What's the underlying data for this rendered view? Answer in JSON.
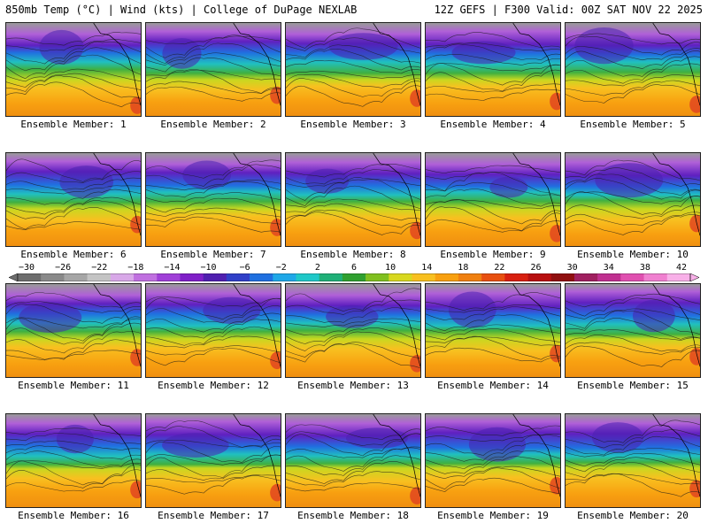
{
  "header": {
    "left": "850mb Temp (°C) | Wind (kts) | College of DuPage NEXLAB",
    "right": "12Z GEFS | F300 Valid: 00Z SAT NOV 22 2025"
  },
  "colorbar": {
    "labels": [
      "−30",
      "−26",
      "−22",
      "−18",
      "−14",
      "−10",
      "−6",
      "−2",
      "2",
      "6",
      "10",
      "14",
      "18",
      "22",
      "26",
      "30",
      "34",
      "38",
      "42"
    ],
    "colors": [
      "#6e6e6e",
      "#8a8a8a",
      "#a6a6a6",
      "#c4c4c4",
      "#d8a8e8",
      "#c070e0",
      "#a040d8",
      "#8020c8",
      "#5020b0",
      "#3040c8",
      "#2070e0",
      "#20a8e8",
      "#20c8c8",
      "#20b078",
      "#30a030",
      "#80c020",
      "#d8d820",
      "#f8c020",
      "#f8a010",
      "#f08010",
      "#e85010",
      "#d82010",
      "#b81010",
      "#901010",
      "#a02060",
      "#c03090",
      "#e050b0",
      "#f080d0",
      "#f8b0e8"
    ]
  },
  "members": [
    {
      "caption": "Ensemble Member: 1"
    },
    {
      "caption": "Ensemble Member: 2"
    },
    {
      "caption": "Ensemble Member: 3"
    },
    {
      "caption": "Ensemble Member: 4"
    },
    {
      "caption": "Ensemble Member: 5"
    },
    {
      "caption": "Ensemble Member: 6"
    },
    {
      "caption": "Ensemble Member: 7"
    },
    {
      "caption": "Ensemble Member: 8"
    },
    {
      "caption": "Ensemble Member: 9"
    },
    {
      "caption": "Ensemble Member: 10"
    },
    {
      "caption": "Ensemble Member: 11"
    },
    {
      "caption": "Ensemble Member: 12"
    },
    {
      "caption": "Ensemble Member: 13"
    },
    {
      "caption": "Ensemble Member: 14"
    },
    {
      "caption": "Ensemble Member: 15"
    },
    {
      "caption": "Ensemble Member: 16"
    },
    {
      "caption": "Ensemble Member: 17"
    },
    {
      "caption": "Ensemble Member: 18"
    },
    {
      "caption": "Ensemble Member: 19"
    },
    {
      "caption": "Ensemble Member: 20"
    }
  ]
}
